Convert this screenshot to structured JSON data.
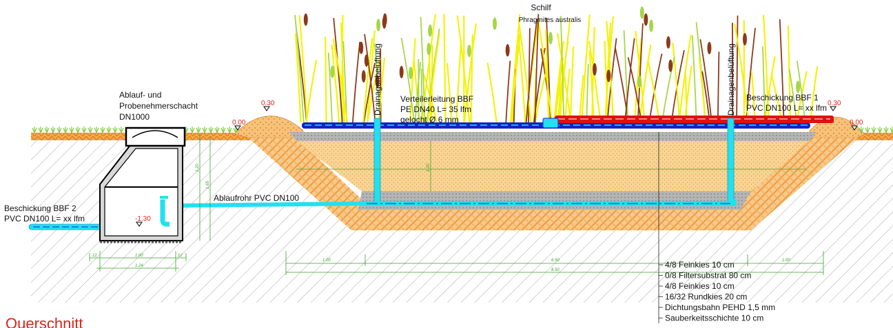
{
  "labels": {
    "reed_line1": "Schilf",
    "reed_line2": "Phragmites australis",
    "shaft_line1": "Ablauf- und",
    "shaft_line2": "Probenehmerschacht",
    "shaft_line3": "DN1000",
    "distrib_line1": "Verteilerleitung BBF",
    "distrib_line2": "PE DN40 L= 35 lfm",
    "distrib_line3": "gelocht Ø 6 mm",
    "vent_left": "Drainagenbelüftung",
    "vent_right": "Drainagenbelüftung",
    "feed1_line1": "Beschickung BBF 1",
    "feed1_line2": "PVC DN100 L= xx lfm",
    "feed2_line1": "Beschickung BBF 2",
    "feed2_line2": "PVC DN100 L= xx lfm",
    "outflow": "Ablaufrohr PVC DN100",
    "elev_left_ground": "0.00",
    "elev_left_berm": "0.30",
    "elev_right_berm": "0.30",
    "elev_right_ground": "0.00",
    "elev_shaft": "-1.30",
    "section_title": "Querschnitt"
  },
  "layers": [
    "4/8 Feinkies 10 cm",
    "0/8 Filtersubstrat 80 cm",
    "4/8 Feinkies 10 cm",
    "16/32 Rundkies 20 cm",
    "Dichtungsbahn PEHD 1,5 mm",
    "Sauberkeitsschichte 10 cm"
  ],
  "dimensions": {
    "d1": "1.00",
    "d2": "6.50",
    "d3": "1.00",
    "d4": "8.50",
    "shaft_a": "12",
    "shaft_b": "1.00",
    "shaft_c": "12",
    "shaft_d": "1.24",
    "v1": "1.20",
    "v2": "1.65",
    "v3": "1.20"
  },
  "colors": {
    "soil_hatch": "#9a9a9a",
    "orange_gravel": "#f0a040",
    "filter_substrate": "#f5c870",
    "fine_gravel": "#9c9c9c",
    "blue_pipe": "#1424c8",
    "cyan_pipe": "#22e0ef",
    "red_pipe": "#e01010",
    "grass": "#7ad04a",
    "dimension": "#3aa12a",
    "reed_yellow": "#f4f20a",
    "reed_brown": "#8b3a1a",
    "title_red": "#d9241b"
  }
}
